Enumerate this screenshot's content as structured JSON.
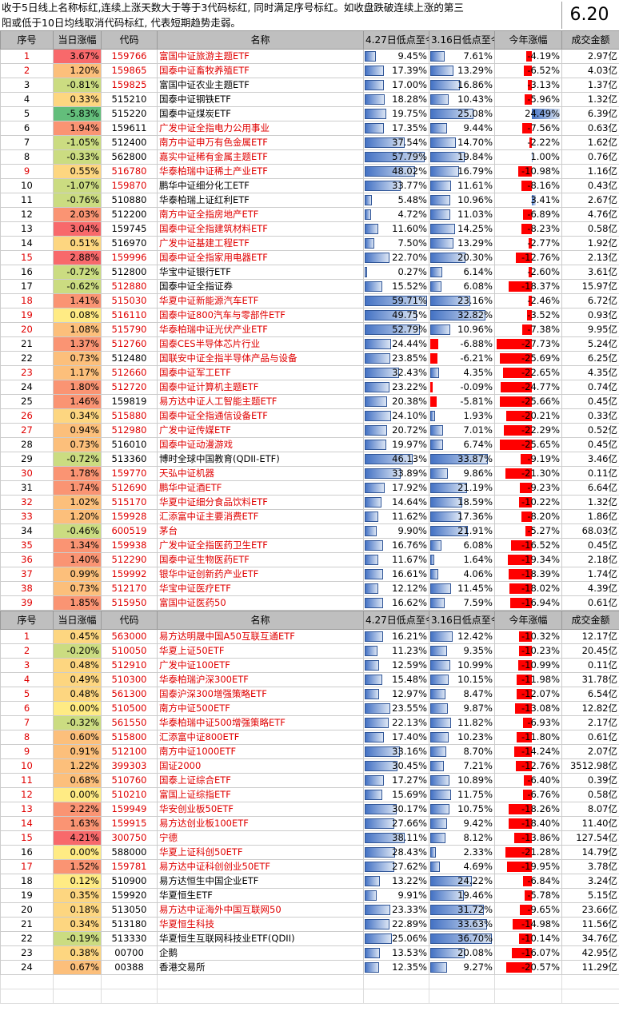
{
  "header_note": {
    "line1": "收于5日线上名称标红,连续上涨天数大于等于3代码标红, 同时满足序号标红。如收盘跌破连续上涨的第三",
    "line2": "阳或低于10日均线取消代码标红, 代表短期趋势走弱。",
    "date": "6.20"
  },
  "colors": {
    "up_strong": "#f8696b",
    "up_mid": "#fcbf7b",
    "neutral": "#ffeb84",
    "down_mid": "#cbdc81",
    "down_strong": "#63be7b",
    "accent_red": "#e00000",
    "bar_blue": "#4472c4",
    "bar_red": "#ff0000"
  },
  "columns": [
    "序号",
    "当日涨幅",
    "代码",
    "名称",
    "4.27日低点至今",
    "3.16日低点至今",
    "今年涨幅",
    "成交金额"
  ],
  "section1": [
    {
      "idx": "1",
      "chg": "3.67%",
      "code": "159766",
      "name": "富国中证旅游主题ETF",
      "a": "9.45%",
      "b": "7.61%",
      "c": "-4.19%",
      "amt": "2.97亿",
      "ri": true,
      "rc": true,
      "rn": true
    },
    {
      "idx": "2",
      "chg": "1.20%",
      "code": "159865",
      "name": "国泰中证畜牧养殖ETF",
      "a": "17.39%",
      "b": "13.29%",
      "c": "-6.52%",
      "amt": "4.03亿",
      "ri": true,
      "rc": true,
      "rn": true
    },
    {
      "idx": "3",
      "chg": "-0.81%",
      "code": "159825",
      "name": "富国中证农业主题ETF",
      "a": "17.00%",
      "b": "16.86%",
      "c": "-3.13%",
      "amt": "1.37亿",
      "ri": false,
      "rc": true,
      "rn": false
    },
    {
      "idx": "4",
      "chg": "0.33%",
      "code": "515210",
      "name": "国泰中证钢铁ETF",
      "a": "18.28%",
      "b": "10.43%",
      "c": "-5.96%",
      "amt": "1.32亿",
      "ri": false,
      "rc": false,
      "rn": false
    },
    {
      "idx": "5",
      "chg": "-5.83%",
      "code": "515220",
      "name": "国泰中证煤炭ETF",
      "a": "19.75%",
      "b": "25.08%",
      "c": "24.49%",
      "amt": "6.39亿",
      "ri": false,
      "rc": false,
      "rn": false
    },
    {
      "idx": "6",
      "chg": "1.94%",
      "code": "159611",
      "name": "广发中证全指电力公用事业",
      "a": "17.35%",
      "b": "9.44%",
      "c": "-7.56%",
      "amt": "0.63亿",
      "ri": false,
      "rc": false,
      "rn": true
    },
    {
      "idx": "7",
      "chg": "-1.05%",
      "code": "512400",
      "name": "南方中证申万有色金属ETF",
      "a": "37.54%",
      "b": "14.70%",
      "c": "-2.22%",
      "amt": "1.62亿",
      "ri": false,
      "rc": false,
      "rn": true
    },
    {
      "idx": "8",
      "chg": "-0.33%",
      "code": "562800",
      "name": "嘉实中证稀有金属主题ETF",
      "a": "57.79%",
      "b": "19.84%",
      "c": "1.00%",
      "amt": "0.76亿",
      "ri": false,
      "rc": false,
      "rn": true
    },
    {
      "idx": "9",
      "chg": "0.55%",
      "code": "516780",
      "name": "华泰柏瑞中证稀土产业ETF",
      "a": "48.02%",
      "b": "16.79%",
      "c": "-10.98%",
      "amt": "1.16亿",
      "ri": true,
      "rc": true,
      "rn": true
    },
    {
      "idx": "10",
      "chg": "-1.07%",
      "code": "159870",
      "name": "鹏华中证细分化工ETF",
      "a": "33.77%",
      "b": "11.61%",
      "c": "-8.16%",
      "amt": "0.43亿",
      "ri": false,
      "rc": true,
      "rn": false
    },
    {
      "idx": "11",
      "chg": "-0.76%",
      "code": "510880",
      "name": "华泰柏瑞上证红利ETF",
      "a": "5.48%",
      "b": "10.96%",
      "c": "3.41%",
      "amt": "2.67亿",
      "ri": false,
      "rc": false,
      "rn": false
    },
    {
      "idx": "12",
      "chg": "2.03%",
      "code": "512200",
      "name": "南方中证全指房地产ETF",
      "a": "4.72%",
      "b": "11.03%",
      "c": "-6.89%",
      "amt": "4.76亿",
      "ri": false,
      "rc": false,
      "rn": true
    },
    {
      "idx": "13",
      "chg": "3.04%",
      "code": "159745",
      "name": "国泰中证全指建筑材料ETF",
      "a": "11.60%",
      "b": "14.25%",
      "c": "-8.23%",
      "amt": "0.58亿",
      "ri": false,
      "rc": false,
      "rn": true
    },
    {
      "idx": "14",
      "chg": "0.51%",
      "code": "516970",
      "name": "广发中证基建工程ETF",
      "a": "7.50%",
      "b": "13.29%",
      "c": "-2.77%",
      "amt": "1.92亿",
      "ri": false,
      "rc": false,
      "rn": true
    },
    {
      "idx": "15",
      "chg": "2.88%",
      "code": "159996",
      "name": "国泰中证全指家用电器ETF",
      "a": "22.70%",
      "b": "20.30%",
      "c": "-12.76%",
      "amt": "2.13亿",
      "ri": true,
      "rc": true,
      "rn": true
    },
    {
      "idx": "16",
      "chg": "-0.72%",
      "code": "512800",
      "name": "华宝中证银行ETF",
      "a": "0.27%",
      "b": "6.14%",
      "c": "-2.60%",
      "amt": "3.61亿",
      "ri": false,
      "rc": false,
      "rn": false
    },
    {
      "idx": "17",
      "chg": "-0.62%",
      "code": "512880",
      "name": "国泰中证全指证券",
      "a": "15.52%",
      "b": "6.08%",
      "c": "-18.37%",
      "amt": "15.97亿",
      "ri": false,
      "rc": true,
      "rn": false
    },
    {
      "idx": "18",
      "chg": "1.41%",
      "code": "515030",
      "name": "华夏中证新能源汽车ETF",
      "a": "59.71%",
      "b": "23.16%",
      "c": "-2.46%",
      "amt": "6.72亿",
      "ri": true,
      "rc": true,
      "rn": true
    },
    {
      "idx": "19",
      "chg": "0.08%",
      "code": "516110",
      "name": "国泰中证800汽车与零部件ETF",
      "a": "49.75%",
      "b": "32.82%",
      "c": "-3.52%",
      "amt": "0.93亿",
      "ri": true,
      "rc": true,
      "rn": true
    },
    {
      "idx": "20",
      "chg": "1.08%",
      "code": "515790",
      "name": "华泰柏瑞中证光伏产业ETF",
      "a": "52.79%",
      "b": "10.96%",
      "c": "-7.38%",
      "amt": "9.95亿",
      "ri": true,
      "rc": true,
      "rn": true
    },
    {
      "idx": "21",
      "chg": "1.37%",
      "code": "512760",
      "name": "国泰CES半导体芯片行业",
      "a": "24.44%",
      "b": "-6.88%",
      "c": "-27.73%",
      "amt": "5.24亿",
      "ri": false,
      "rc": true,
      "rn": true
    },
    {
      "idx": "22",
      "chg": "0.73%",
      "code": "512480",
      "name": "国联安中证全指半导体产品与设备",
      "a": "23.85%",
      "b": "-6.21%",
      "c": "-25.69%",
      "amt": "6.25亿",
      "ri": false,
      "rc": false,
      "rn": true
    },
    {
      "idx": "23",
      "chg": "1.17%",
      "code": "512660",
      "name": "国泰中证军工ETF",
      "a": "32.43%",
      "b": "4.35%",
      "c": "-22.65%",
      "amt": "4.35亿",
      "ri": true,
      "rc": true,
      "rn": true
    },
    {
      "idx": "24",
      "chg": "1.80%",
      "code": "512720",
      "name": "国泰中证计算机主题ETF",
      "a": "23.22%",
      "b": "-0.09%",
      "c": "-24.77%",
      "amt": "0.74亿",
      "ri": false,
      "rc": true,
      "rn": true
    },
    {
      "idx": "25",
      "chg": "1.46%",
      "code": "159819",
      "name": "易方达中证人工智能主题ETF",
      "a": "20.38%",
      "b": "-5.81%",
      "c": "-25.66%",
      "amt": "0.45亿",
      "ri": false,
      "rc": false,
      "rn": true
    },
    {
      "idx": "26",
      "chg": "0.34%",
      "code": "515880",
      "name": "国泰中证全指通信设备ETF",
      "a": "24.10%",
      "b": "1.93%",
      "c": "-20.21%",
      "amt": "0.33亿",
      "ri": true,
      "rc": true,
      "rn": true
    },
    {
      "idx": "27",
      "chg": "0.94%",
      "code": "512980",
      "name": "广发中证传媒ETF",
      "a": "20.72%",
      "b": "7.01%",
      "c": "-22.29%",
      "amt": "0.52亿",
      "ri": true,
      "rc": true,
      "rn": true
    },
    {
      "idx": "28",
      "chg": "0.73%",
      "code": "516010",
      "name": "国泰中证动漫游戏",
      "a": "19.97%",
      "b": "6.74%",
      "c": "-25.65%",
      "amt": "0.45亿",
      "ri": false,
      "rc": false,
      "rn": true
    },
    {
      "idx": "29",
      "chg": "-0.72%",
      "code": "513360",
      "name": "博时全球中国教育(QDII-ETF)",
      "a": "46.13%",
      "b": "33.87%",
      "c": "-9.19%",
      "amt": "3.46亿",
      "ri": false,
      "rc": false,
      "rn": false
    },
    {
      "idx": "30",
      "chg": "1.78%",
      "code": "159770",
      "name": "天弘中证机器",
      "a": "33.89%",
      "b": "9.86%",
      "c": "-21.30%",
      "amt": "0.11亿",
      "ri": true,
      "rc": true,
      "rn": true
    },
    {
      "idx": "31",
      "chg": "1.74%",
      "code": "512690",
      "name": "鹏华中证酒ETF",
      "a": "17.92%",
      "b": "21.19%",
      "c": "-9.23%",
      "amt": "6.64亿",
      "ri": false,
      "rc": true,
      "rn": true
    },
    {
      "idx": "32",
      "chg": "1.02%",
      "code": "515170",
      "name": "华夏中证细分食品饮料ETF",
      "a": "14.64%",
      "b": "18.59%",
      "c": "-10.22%",
      "amt": "1.32亿",
      "ri": true,
      "rc": true,
      "rn": true
    },
    {
      "idx": "33",
      "chg": "1.20%",
      "code": "159928",
      "name": "汇添富中证主要消费ETF",
      "a": "11.62%",
      "b": "17.36%",
      "c": "-8.20%",
      "amt": "1.86亿",
      "ri": true,
      "rc": true,
      "rn": true
    },
    {
      "idx": "34",
      "chg": "-0.46%",
      "code": "600519",
      "name": "茅台",
      "a": "9.90%",
      "b": "21.91%",
      "c": "-5.27%",
      "amt": "68.03亿",
      "ri": false,
      "rc": true,
      "rn": true
    },
    {
      "idx": "35",
      "chg": "1.34%",
      "code": "159938",
      "name": "广发中证全指医药卫生ETF",
      "a": "16.76%",
      "b": "6.08%",
      "c": "-16.52%",
      "amt": "0.45亿",
      "ri": true,
      "rc": true,
      "rn": true
    },
    {
      "idx": "36",
      "chg": "1.40%",
      "code": "512290",
      "name": "国泰中证生物医药ETF",
      "a": "11.67%",
      "b": "1.64%",
      "c": "-19.34%",
      "amt": "2.18亿",
      "ri": true,
      "rc": true,
      "rn": true
    },
    {
      "idx": "37",
      "chg": "0.99%",
      "code": "159992",
      "name": "银华中证创新药产业ETF",
      "a": "16.61%",
      "b": "4.06%",
      "c": "-18.39%",
      "amt": "1.74亿",
      "ri": true,
      "rc": true,
      "rn": true
    },
    {
      "idx": "38",
      "chg": "0.73%",
      "code": "512170",
      "name": "华宝中证医疗ETF",
      "a": "12.12%",
      "b": "11.45%",
      "c": "-18.02%",
      "amt": "4.39亿",
      "ri": true,
      "rc": true,
      "rn": true
    },
    {
      "idx": "39",
      "chg": "1.85%",
      "code": "515950",
      "name": "富国中证医药50",
      "a": "16.62%",
      "b": "7.59%",
      "c": "-16.94%",
      "amt": "0.61亿",
      "ri": true,
      "rc": true,
      "rn": true
    }
  ],
  "section2": [
    {
      "idx": "1",
      "chg": "0.45%",
      "code": "563000",
      "name": "易方达明晟中国A50互联互通ETF",
      "a": "16.21%",
      "b": "12.42%",
      "c": "-10.32%",
      "amt": "12.17亿",
      "ri": true,
      "rc": true,
      "rn": true
    },
    {
      "idx": "2",
      "chg": "-0.20%",
      "code": "510050",
      "name": "华夏上证50ETF",
      "a": "11.23%",
      "b": "9.35%",
      "c": "-10.23%",
      "amt": "20.45亿",
      "ri": true,
      "rc": true,
      "rn": true
    },
    {
      "idx": "3",
      "chg": "0.48%",
      "code": "512910",
      "name": "广发中证100ETF",
      "a": "12.59%",
      "b": "10.99%",
      "c": "-10.99%",
      "amt": "0.11亿",
      "ri": true,
      "rc": true,
      "rn": true
    },
    {
      "idx": "4",
      "chg": "0.49%",
      "code": "510300",
      "name": "华泰柏瑞沪深300ETF",
      "a": "15.48%",
      "b": "10.15%",
      "c": "-11.98%",
      "amt": "31.78亿",
      "ri": true,
      "rc": true,
      "rn": true
    },
    {
      "idx": "5",
      "chg": "0.48%",
      "code": "561300",
      "name": "国泰沪深300增强策略ETF",
      "a": "12.97%",
      "b": "8.47%",
      "c": "-12.07%",
      "amt": "6.54亿",
      "ri": true,
      "rc": true,
      "rn": true
    },
    {
      "idx": "6",
      "chg": "0.00%",
      "code": "510500",
      "name": "南方中证500ETF",
      "a": "23.55%",
      "b": "9.87%",
      "c": "-13.08%",
      "amt": "12.82亿",
      "ri": true,
      "rc": true,
      "rn": true
    },
    {
      "idx": "7",
      "chg": "-0.32%",
      "code": "561550",
      "name": "华泰柏瑞中证500增强策略ETF",
      "a": "22.13%",
      "b": "11.82%",
      "c": "-6.93%",
      "amt": "2.17亿",
      "ri": true,
      "rc": true,
      "rn": true
    },
    {
      "idx": "8",
      "chg": "0.60%",
      "code": "515800",
      "name": "汇添富中证800ETF",
      "a": "17.40%",
      "b": "10.23%",
      "c": "-11.80%",
      "amt": "0.61亿",
      "ri": true,
      "rc": true,
      "rn": true
    },
    {
      "idx": "9",
      "chg": "0.91%",
      "code": "512100",
      "name": "南方中证1000ETF",
      "a": "33.16%",
      "b": "8.70%",
      "c": "-14.24%",
      "amt": "2.07亿",
      "ri": true,
      "rc": true,
      "rn": true
    },
    {
      "idx": "10",
      "chg": "1.22%",
      "code": "399303",
      "name": "国证2000",
      "a": "30.45%",
      "b": "7.21%",
      "c": "-12.76%",
      "amt": "3512.98亿",
      "ri": true,
      "rc": true,
      "rn": true
    },
    {
      "idx": "11",
      "chg": "0.68%",
      "code": "510760",
      "name": "国泰上证综合ETF",
      "a": "17.27%",
      "b": "10.89%",
      "c": "-6.40%",
      "amt": "0.39亿",
      "ri": true,
      "rc": true,
      "rn": true
    },
    {
      "idx": "12",
      "chg": "0.00%",
      "code": "510210",
      "name": "富国上证综指ETF",
      "a": "15.69%",
      "b": "11.75%",
      "c": "-6.76%",
      "amt": "0.58亿",
      "ri": true,
      "rc": true,
      "rn": true
    },
    {
      "idx": "13",
      "chg": "2.22%",
      "code": "159949",
      "name": "华安创业板50ETF",
      "a": "30.17%",
      "b": "10.75%",
      "c": "-18.26%",
      "amt": "8.07亿",
      "ri": true,
      "rc": true,
      "rn": true
    },
    {
      "idx": "14",
      "chg": "1.63%",
      "code": "159915",
      "name": "易方达创业板100ETF",
      "a": "27.66%",
      "b": "9.42%",
      "c": "-18.40%",
      "amt": "11.40亿",
      "ri": true,
      "rc": true,
      "rn": true
    },
    {
      "idx": "15",
      "chg": "4.21%",
      "code": "300750",
      "name": "宁德",
      "a": "38.11%",
      "b": "8.12%",
      "c": "-13.86%",
      "amt": "127.54亿",
      "ri": true,
      "rc": true,
      "rn": true
    },
    {
      "idx": "16",
      "chg": "0.00%",
      "code": "588000",
      "name": "华夏上证科创50ETF",
      "a": "28.43%",
      "b": "2.33%",
      "c": "-21.28%",
      "amt": "14.79亿",
      "ri": false,
      "rc": false,
      "rn": true
    },
    {
      "idx": "17",
      "chg": "1.52%",
      "code": "159781",
      "name": "易方达中证科创创业50ETF",
      "a": "27.62%",
      "b": "4.69%",
      "c": "-19.95%",
      "amt": "3.78亿",
      "ri": true,
      "rc": true,
      "rn": true
    },
    {
      "idx": "18",
      "chg": "0.12%",
      "code": "510900",
      "name": "易方达恒生中国企业ETF",
      "a": "13.22%",
      "b": "24.22%",
      "c": "-6.84%",
      "amt": "3.24亿",
      "ri": false,
      "rc": false,
      "rn": false
    },
    {
      "idx": "19",
      "chg": "0.35%",
      "code": "159920",
      "name": "华夏恒生ETF",
      "a": "9.91%",
      "b": "19.46%",
      "c": "-5.78%",
      "amt": "5.15亿",
      "ri": false,
      "rc": false,
      "rn": false
    },
    {
      "idx": "20",
      "chg": "0.18%",
      "code": "513050",
      "name": "易方达中证海外中国互联网50",
      "a": "23.33%",
      "b": "31.72%",
      "c": "-9.65%",
      "amt": "23.66亿",
      "ri": false,
      "rc": false,
      "rn": true
    },
    {
      "idx": "21",
      "chg": "0.34%",
      "code": "513180",
      "name": "华夏恒生科技",
      "a": "22.89%",
      "b": "33.63%",
      "c": "-14.98%",
      "amt": "11.56亿",
      "ri": false,
      "rc": false,
      "rn": true
    },
    {
      "idx": "22",
      "chg": "-0.19%",
      "code": "513330",
      "name": "华夏恒生互联网科技业ETF(QDII)",
      "a": "25.06%",
      "b": "36.70%",
      "c": "-10.14%",
      "amt": "34.76亿",
      "ri": false,
      "rc": false,
      "rn": false
    },
    {
      "idx": "23",
      "chg": "0.38%",
      "code": "00700",
      "name": "企鹅",
      "a": "13.53%",
      "b": "20.08%",
      "c": "-16.07%",
      "amt": "42.95亿",
      "ri": false,
      "rc": false,
      "rn": false
    },
    {
      "idx": "24",
      "chg": "0.67%",
      "code": "00388",
      "name": "香港交易所",
      "a": "12.35%",
      "b": "9.27%",
      "c": "-20.57%",
      "amt": "11.29亿",
      "ri": false,
      "rc": false,
      "rn": false
    }
  ]
}
